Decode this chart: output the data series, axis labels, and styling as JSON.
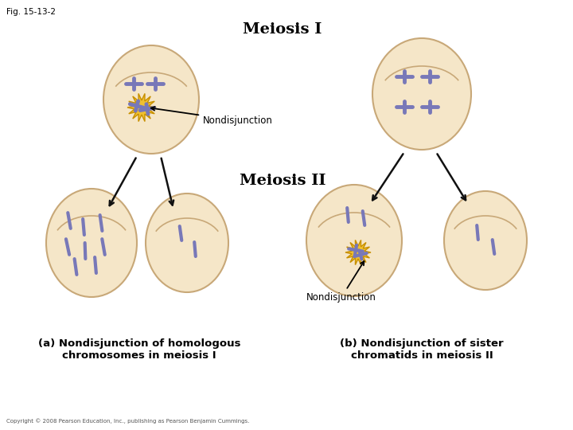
{
  "fig_label": "Fig. 15-13-2",
  "title_meiosis1": "Meiosis I",
  "title_meiosis2": "Meiosis II",
  "label_nondisjunction": "Nondisjunction",
  "label_a": "(a) Nondisjunction of homologous\nchromosomes in meiosis I",
  "label_b": "(b) Nondisjunction of sister\nchromatids in meiosis II",
  "copyright": "Copyright © 2008 Pearson Education, Inc., publishing as Pearson Benjamin Cummings.",
  "cell_color": "#f5e6c8",
  "cell_edge_color": "#c8a878",
  "chrom_color": "#7878b8",
  "burst_color": "#f0c030",
  "burst_edge": "#c89000",
  "bg_color": "#ffffff",
  "arrow_color": "#111111",
  "equator_color": "#c8a878"
}
